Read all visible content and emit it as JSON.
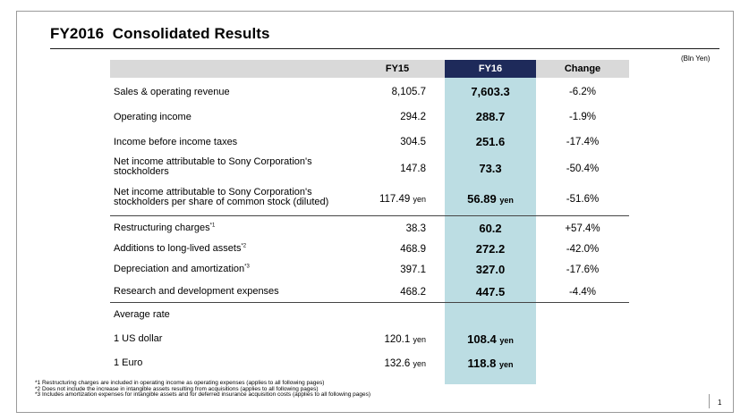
{
  "title": "FY2016  Consolidated Results",
  "unit": "(Bln Yen)",
  "headers": {
    "fy15": "FY15",
    "fy16": "FY16",
    "change": "Change"
  },
  "rows": [
    {
      "label": "Sales & operating revenue",
      "fy15": "8,105.7",
      "fy16": "7,603.3",
      "change": "-6.2%"
    },
    {
      "label": "Operating income",
      "fy15": "294.2",
      "fy16": "288.7",
      "change": "-1.9%"
    },
    {
      "label": "Income before income taxes",
      "fy15": "304.5",
      "fy16": "251.6",
      "change": "-17.4%"
    },
    {
      "label_line1": "Net income attributable to Sony Corporation's",
      "label_line2": "stockholders",
      "fy15": "147.8",
      "fy16": "73.3",
      "change": "-50.4%"
    },
    {
      "label_line1": "Net income attributable to Sony Corporation's",
      "label_line2": "stockholders per share of common stock (diluted)",
      "fy15": "117.49",
      "fy15_unit": "yen",
      "fy16": "56.89",
      "fy16_unit": "yen",
      "change": "-51.6%"
    },
    {
      "label": "Restructuring charges",
      "sup": "*1",
      "fy15": "38.3",
      "fy16": "60.2",
      "change": "+57.4%"
    },
    {
      "label": "Additions to long-lived assets",
      "sup": "*2",
      "fy15": "468.9",
      "fy16": "272.2",
      "change": "-42.0%"
    },
    {
      "label": "Depreciation and amortization",
      "sup": "*3",
      "fy15": "397.1",
      "fy16": "327.0",
      "change": "-17.6%"
    },
    {
      "label": "Research and development expenses",
      "fy15": "468.2",
      "fy16": "447.5",
      "change": "-4.4%"
    }
  ],
  "average_rate": {
    "label": "Average rate",
    "usd": {
      "label": "1 US dollar",
      "fy15": "120.1",
      "fy16": "108.4",
      "unit": "yen"
    },
    "eur": {
      "label": "1 Euro",
      "fy15": "132.6",
      "fy16": "118.8",
      "unit": "yen"
    }
  },
  "footnotes": [
    "*1 Restructuring charges are included in operating income as operating expenses (applies to all following pages)",
    "*2 Does not include the increase in intangible assets resulting from acquisitions (applies to all following pages)",
    "*3 Includes amortization expenses for intangible assets and for deferred insurance acquisition costs (applies to all following pages)"
  ],
  "page_number": "1"
}
